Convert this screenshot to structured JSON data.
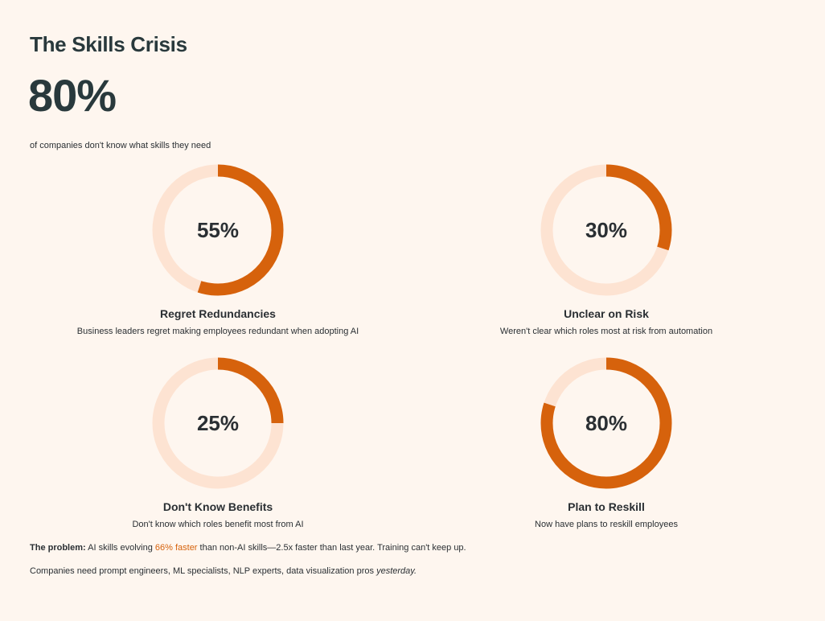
{
  "header": {
    "title": "The Skills Crisis",
    "big_stat": "80%",
    "big_caption": "of companies don't know what skills they need"
  },
  "colors": {
    "accent": "#d6620c",
    "track": "#fde3d2",
    "background": "#fef6ef",
    "text": "#2a2f33"
  },
  "chart_data": [
    {
      "type": "pie",
      "value": 55,
      "label": "55%",
      "title": "Regret Redundancies",
      "description": "Business leaders regret making employees redundant when adopting AI"
    },
    {
      "type": "pie",
      "value": 30,
      "label": "30%",
      "title": "Unclear on Risk",
      "description": "Weren't clear which roles most at risk from automation"
    },
    {
      "type": "pie",
      "value": 25,
      "label": "25%",
      "title": "Don't Know Benefits",
      "description": "Don't know which roles benefit most from AI"
    },
    {
      "type": "pie",
      "value": 80,
      "label": "80%",
      "title": "Plan to Reskill",
      "description": "Now have plans to reskill employees"
    }
  ],
  "footer": {
    "problem_label": "The problem:",
    "problem_text_1": "AI skills evolving",
    "problem_highlight": "66% faster",
    "problem_text_2": "than non-AI skills—2.5x faster than last year. Training can't keep up.",
    "need_text": "Companies need prompt engineers, ML specialists, NLP experts, data visualization pros",
    "need_italic": "yesterday."
  }
}
